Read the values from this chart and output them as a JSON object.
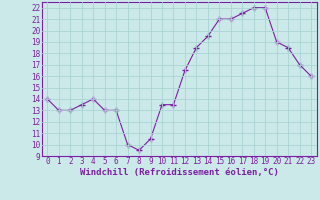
{
  "x": [
    0,
    1,
    2,
    3,
    4,
    5,
    6,
    7,
    8,
    9,
    10,
    11,
    12,
    13,
    14,
    15,
    16,
    17,
    18,
    19,
    20,
    21,
    22,
    23
  ],
  "y": [
    14.0,
    13.0,
    13.0,
    13.5,
    14.0,
    13.0,
    13.0,
    10.0,
    9.5,
    10.5,
    13.5,
    13.5,
    16.5,
    18.5,
    19.5,
    21.0,
    21.0,
    21.5,
    22.0,
    22.0,
    19.0,
    18.5,
    17.0,
    16.0
  ],
  "line_color": "#7b1fa2",
  "marker": "+",
  "marker_size": 4,
  "bg_color": "#cce9e9",
  "grid_color": "#aad4d4",
  "xlabel": "Windchill (Refroidissement éolien,°C)",
  "xlabel_fontsize": 6.5,
  "tick_fontsize": 5.5,
  "xlim": [
    -0.5,
    23.5
  ],
  "ylim": [
    9,
    22.5
  ],
  "yticks": [
    9,
    10,
    11,
    12,
    13,
    14,
    15,
    16,
    17,
    18,
    19,
    20,
    21,
    22
  ],
  "xticks": [
    0,
    1,
    2,
    3,
    4,
    5,
    6,
    7,
    8,
    9,
    10,
    11,
    12,
    13,
    14,
    15,
    16,
    17,
    18,
    19,
    20,
    21,
    22,
    23
  ]
}
